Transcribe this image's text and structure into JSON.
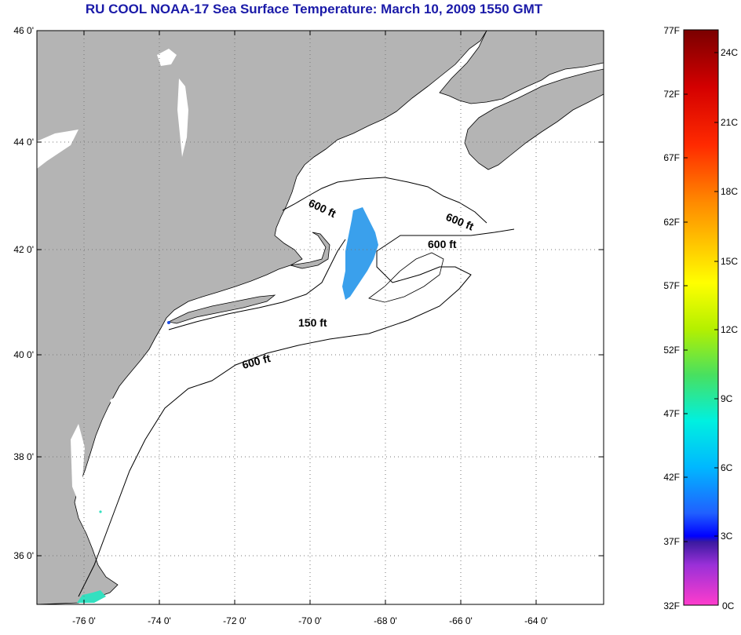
{
  "title": "RU COOL  NOAA-17  Sea Surface Temperature:  March 10, 2009 1550 GMT",
  "map": {
    "lat_labels": [
      "46 0'",
      "44 0'",
      "42 0'",
      "40 0'",
      "38 0'",
      "36 0'"
    ],
    "lon_labels": [
      "-76 0'",
      "-74 0'",
      "-72 0'",
      "-70 0'",
      "-68 0'",
      "-66 0'",
      "-64 0'"
    ],
    "contour_labels": [
      "600 ft",
      "600 ft",
      "600 ft",
      "150 ft",
      "600 ft"
    ],
    "colors": {
      "land": "#b4b4b4",
      "ocean": "#ffffff",
      "sst_cool": "#3aa0ec",
      "sst_green": "#33e0c0"
    }
  },
  "color_scale": {
    "fahrenheit_labels": [
      "77F",
      "72F",
      "67F",
      "62F",
      "57F",
      "52F",
      "47F",
      "42F",
      "37F",
      "32F"
    ],
    "celsius_labels": [
      "24C",
      "21C",
      "18C",
      "15C",
      "12C",
      "9C",
      "6C",
      "3C",
      "0C"
    ]
  }
}
